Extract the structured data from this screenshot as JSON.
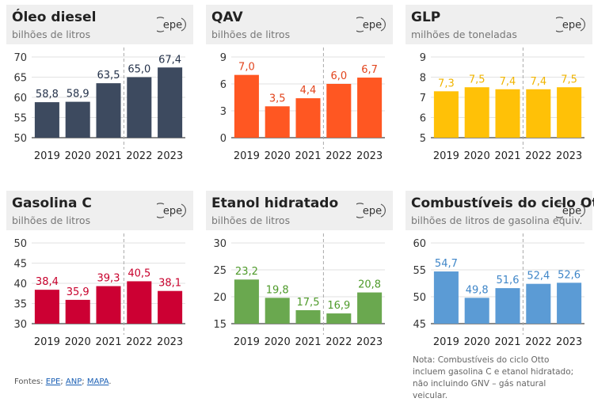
{
  "chart_data": [
    {
      "type": "bar",
      "title": "Óleo diesel",
      "unit": "bilhões de litros",
      "categories": [
        "2019",
        "2020",
        "2021",
        "2022",
        "2023"
      ],
      "values": [
        58.8,
        58.9,
        63.5,
        65.0,
        67.4
      ],
      "labels": [
        "58,8",
        "58,9",
        "63,5",
        "65,0",
        "67,4"
      ],
      "ylim": [
        50,
        70
      ],
      "yticks": [
        50,
        55,
        60,
        65,
        70
      ],
      "color": "#3d4a5f",
      "label_color": "#24324a",
      "divider_after_index": 2
    },
    {
      "type": "bar",
      "title": "QAV",
      "unit": "bilhões de litros",
      "categories": [
        "2019",
        "2020",
        "2021",
        "2022",
        "2023"
      ],
      "values": [
        7.0,
        3.5,
        4.4,
        6.0,
        6.7
      ],
      "labels": [
        "7,0",
        "3,5",
        "4,4",
        "6,0",
        "6,7"
      ],
      "ylim": [
        0,
        9
      ],
      "yticks": [
        0,
        3,
        6,
        9
      ],
      "color": "#ff5722",
      "label_color": "#e2441c",
      "divider_after_index": 2
    },
    {
      "type": "bar",
      "title": "GLP",
      "unit": "milhões de toneladas",
      "categories": [
        "2019",
        "2020",
        "2021",
        "2022",
        "2023"
      ],
      "values": [
        7.3,
        7.5,
        7.4,
        7.4,
        7.5
      ],
      "labels": [
        "7,3",
        "7,5",
        "7,4",
        "7,4",
        "7,5"
      ],
      "ylim": [
        5,
        9
      ],
      "yticks": [
        5,
        6,
        7,
        8,
        9
      ],
      "color": "#ffc107",
      "label_color": "#f0b400",
      "divider_after_index": 2
    },
    {
      "type": "bar",
      "title": "Gasolina C",
      "unit": "bilhões de litros",
      "categories": [
        "2019",
        "2020",
        "2021",
        "2022",
        "2023"
      ],
      "values": [
        38.4,
        35.9,
        39.3,
        40.5,
        38.1
      ],
      "labels": [
        "38,4",
        "35,9",
        "39,3",
        "40,5",
        "38,1"
      ],
      "ylim": [
        30,
        50
      ],
      "yticks": [
        30,
        35,
        40,
        45,
        50
      ],
      "color": "#cc0033",
      "label_color": "#c8002c",
      "divider_after_index": 2
    },
    {
      "type": "bar",
      "title": "Etanol hidratado",
      "unit": "bilhões de litros",
      "categories": [
        "2019",
        "2020",
        "2021",
        "2022",
        "2023"
      ],
      "values": [
        23.2,
        19.8,
        17.5,
        16.9,
        20.8
      ],
      "labels": [
        "23,2",
        "19,8",
        "17,5",
        "16,9",
        "20,8"
      ],
      "ylim": [
        15,
        30
      ],
      "yticks": [
        15,
        20,
        25,
        30
      ],
      "color": "#6aa84f",
      "label_color": "#4e9a2a",
      "divider_after_index": 2
    },
    {
      "type": "bar",
      "title": "Combustíveis do ciclo Otto",
      "unit": "bilhões de litros de gasolina equiv.",
      "categories": [
        "2019",
        "2020",
        "2021",
        "2022",
        "2023"
      ],
      "values": [
        54.7,
        49.8,
        51.6,
        52.4,
        52.6
      ],
      "labels": [
        "54,7",
        "49,8",
        "51,6",
        "52,4",
        "52,6"
      ],
      "ylim": [
        45,
        60
      ],
      "yticks": [
        45,
        50,
        55,
        60
      ],
      "color": "#5b9bd5",
      "label_color": "#3f86c8",
      "divider_after_index": 2
    }
  ],
  "logo_text": "epe",
  "footer": {
    "prefix": "Fontes: ",
    "sources": [
      "EPE",
      "ANP",
      "MAPA"
    ],
    "separator": "; ",
    "suffix": "."
  },
  "note": "Nota: Combustíveis do ciclo Otto incluem gasolina C e etanol hidratado; não incluindo GNV – gás natural veicular."
}
